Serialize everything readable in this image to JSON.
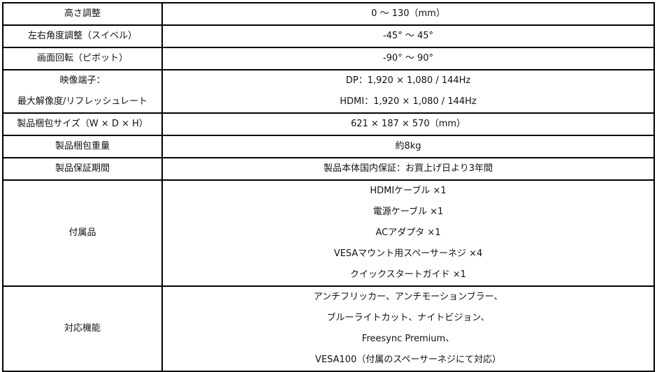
{
  "rows": [
    {
      "label": [
        "高さ調整"
      ],
      "value": [
        "0 ～ 130（mm）"
      ]
    },
    {
      "label": [
        "左右角度調整（スイベル）"
      ],
      "value": [
        "-45° ～ 45°"
      ]
    },
    {
      "label": [
        "画面回転（ピボット）"
      ],
      "value": [
        "-90° ～ 90°"
      ]
    },
    {
      "label": [
        "映像端子：",
        "最大解像度/リフレッシュレート"
      ],
      "value": [
        "DP：1,920 × 1,080 / 144Hz",
        "HDMI：1,920 × 1,080 / 144Hz"
      ]
    },
    {
      "label": [
        "製品梱包サイズ（W × D × H）"
      ],
      "value": [
        "621 × 187 × 570（mm）"
      ]
    },
    {
      "label": [
        "製品梱包重量"
      ],
      "value": [
        "約8kg"
      ]
    },
    {
      "label": [
        "製品保証期間"
      ],
      "value": [
        "製品本体国内保証：お買上げ日より3年間"
      ]
    },
    {
      "label": [
        "付属品"
      ],
      "value": [
        "HDMIケーブル ×1",
        "電源ケーブル ×1",
        "ACアダプタ ×1",
        "VESAマウント用スペーサーネジ ×4",
        "クイックスタートガイド ×1"
      ]
    },
    {
      "label": [
        "対応機能"
      ],
      "value": [
        "アンチフリッカー、アンチモーションブラー、",
        "ブルーライトカット、ナイトビジョン、",
        "Freesync Premium、",
        "VESA100（付属のスペーサーネジにて対応）"
      ]
    }
  ]
}
